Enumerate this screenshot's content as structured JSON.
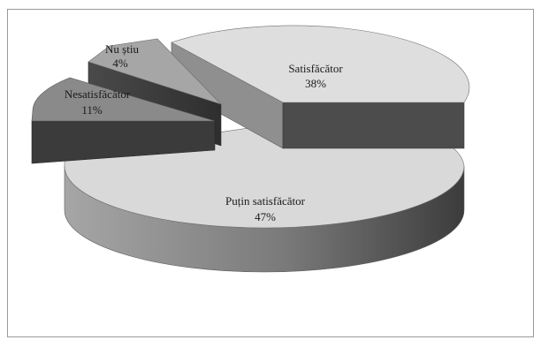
{
  "chart_data": {
    "type": "pie",
    "title": "",
    "slices": [
      {
        "label": "Satisfăcător",
        "value": 38,
        "value_label": "38%",
        "color": "#dcdcdc"
      },
      {
        "label": "Puțin satisfăcător",
        "value": 47,
        "value_label": "47%",
        "color": "#d8d8d8"
      },
      {
        "label": "Nesatisfăcător",
        "value": 11,
        "value_label": "11%",
        "color": "#8a8a8a"
      },
      {
        "label": "Nu știu",
        "value": 4,
        "value_label": "4%",
        "color": "#a8a8a8"
      }
    ],
    "style": "3d-exploded",
    "legend": "none",
    "colors": {
      "side_light": "#8c8c8c",
      "side_dark": "#3a3a3a",
      "frame_border": "#9a9a9a"
    }
  }
}
